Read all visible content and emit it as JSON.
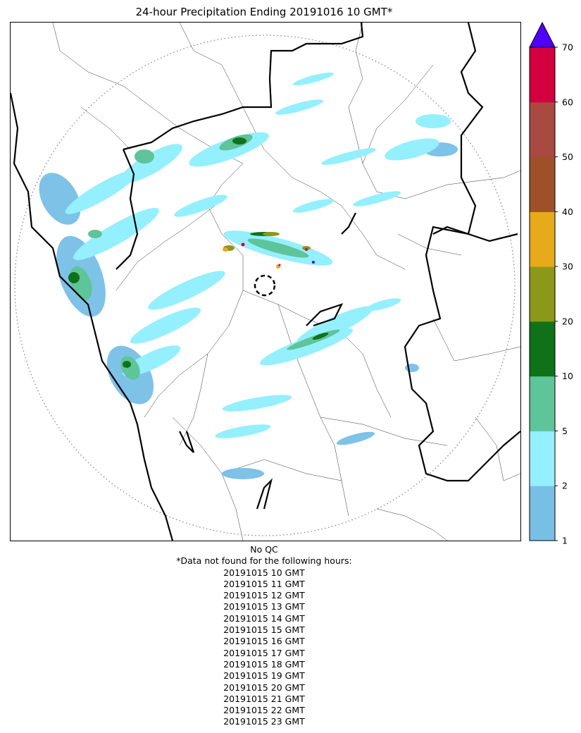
{
  "title": "24-hour Precipitation Ending 20191016 10 GMT*",
  "colorbar": {
    "levels": [
      1,
      2,
      5,
      10,
      20,
      30,
      40,
      50,
      60,
      70
    ],
    "tick_labels": [
      "1",
      "2",
      "5",
      "10",
      "20",
      "30",
      "40",
      "50",
      "60",
      "70"
    ],
    "colors": [
      "#78bfe6",
      "#94efff",
      "#5ec499",
      "#0f7219",
      "#8c9819",
      "#e6aa1b",
      "#a05028",
      "#a84a42",
      "#d2003f"
    ],
    "extend_color": "#5000ff"
  },
  "notes": {
    "qc": "No QC",
    "missing_header": "*Data not found for the following hours:",
    "missing_hours": [
      "20191015 10 GMT",
      "20191015 11 GMT",
      "20191015 12 GMT",
      "20191015 13 GMT",
      "20191015 14 GMT",
      "20191015 15 GMT",
      "20191015 16 GMT",
      "20191015 17 GMT",
      "20191015 18 GMT",
      "20191015 19 GMT",
      "20191015 20 GMT",
      "20191015 21 GMT",
      "20191015 22 GMT",
      "20191015 23 GMT"
    ]
  }
}
